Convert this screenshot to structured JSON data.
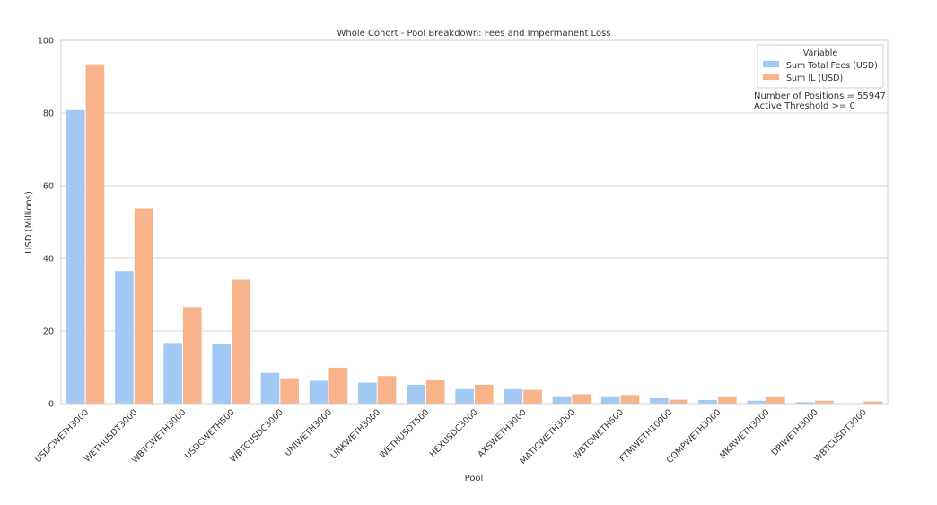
{
  "chart_data": {
    "type": "bar",
    "title": "Whole Cohort - Pool Breakdown: Fees and Impermanent Loss",
    "xlabel": "Pool",
    "ylabel": "USD (Millions)",
    "ylim": [
      0,
      100
    ],
    "yticks": [
      0,
      20,
      40,
      60,
      80,
      100
    ],
    "grid": "horizontal",
    "legend": {
      "title": "Variable",
      "placement": "top-right"
    },
    "categories": [
      "USDCWETH3000",
      "WETHUSDT3000",
      "WBTCWETH3000",
      "USDCWETH500",
      "WBTCUSDC3000",
      "UNIWETH3000",
      "LINKWETH3000",
      "WETHUSDT500",
      "HEXUSDC3000",
      "AXSWETH3000",
      "MATICWETH3000",
      "WBTCWETH500",
      "FTMWETH10000",
      "COMPWETH3000",
      "MKRWETH3000",
      "DPIWETH3000",
      "WBTCUSDT3000"
    ],
    "series": [
      {
        "name": "Sum Total Fees (USD)",
        "color": "#a1c9f4",
        "values": [
          80.8,
          36.5,
          16.7,
          16.5,
          8.5,
          6.3,
          5.8,
          5.2,
          4.0,
          4.0,
          1.8,
          1.8,
          1.5,
          1.0,
          0.8,
          0.4,
          0.1
        ]
      },
      {
        "name": "Sum IL (USD)",
        "color": "#f8b38a",
        "values": [
          93.4,
          53.7,
          26.6,
          34.2,
          7.0,
          9.9,
          7.6,
          6.4,
          5.2,
          3.8,
          2.6,
          2.4,
          1.1,
          1.8,
          1.8,
          0.8,
          0.6
        ]
      }
    ],
    "annotations": [
      "Number of Positions = 55947",
      "Active Threshold >= 0"
    ]
  }
}
